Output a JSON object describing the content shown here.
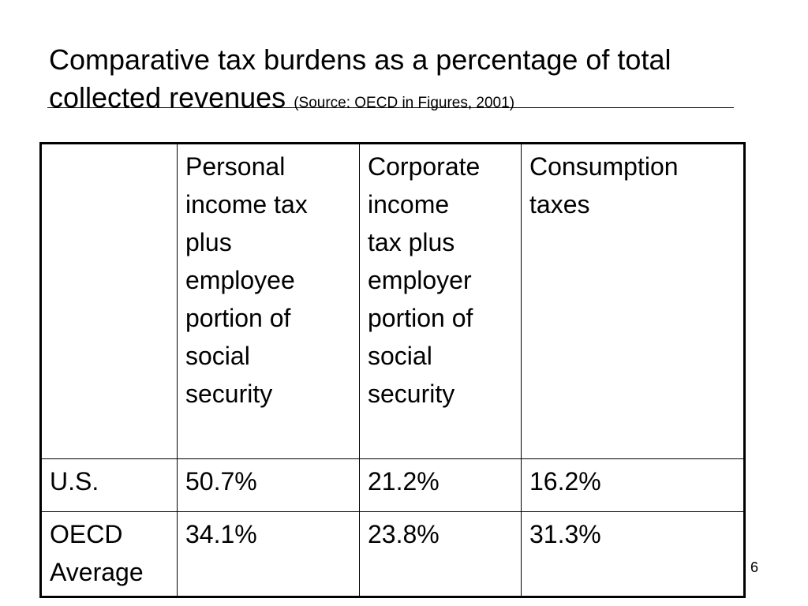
{
  "slide": {
    "title_line1": "Comparative tax burdens as a percentage of total",
    "title_line2": "collected revenues",
    "source": "(Source:  OECD in Figures, 2001)",
    "page_number": "6"
  },
  "table": {
    "headers": [
      "",
      "Personal\nincome tax\nplus\nemployee\nportion of\nsocial\nsecurity",
      "Corporate\nincome\ntax plus\nemployer\nportion of\nsocial\nsecurity",
      "Consumption\ntaxes"
    ],
    "rows": [
      {
        "label": "U.S.",
        "values": [
          "50.7%",
          "21.2%",
          "16.2%"
        ]
      },
      {
        "label": "OECD\nAverage",
        "values": [
          "34.1%",
          "23.8%",
          "31.3%"
        ]
      }
    ]
  }
}
